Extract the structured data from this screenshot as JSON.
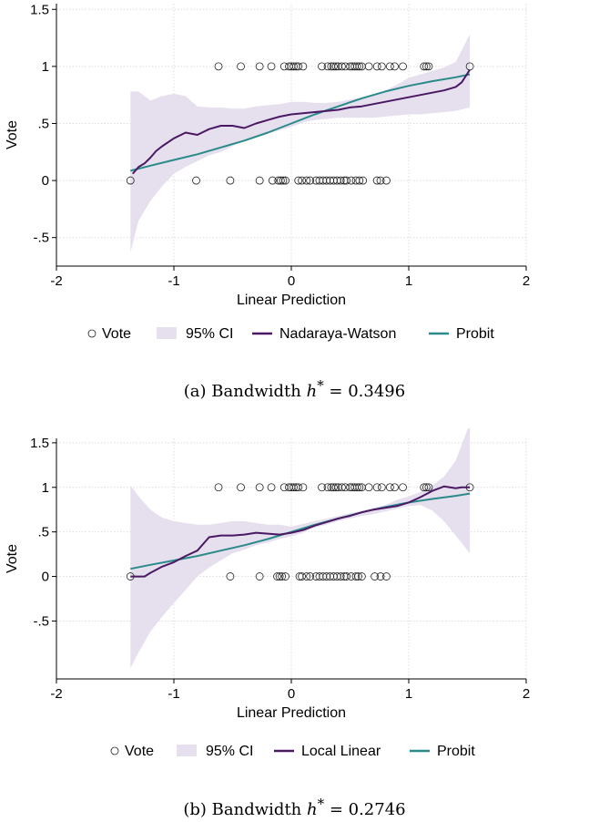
{
  "chart_data": [
    {
      "type": "scatter",
      "xlabel": "Linear Prediction",
      "ylabel": "Vote",
      "xlim": [
        -2,
        2
      ],
      "ylim": [
        -0.75,
        1.55
      ],
      "xticks": [
        -2,
        -1,
        0,
        1,
        2
      ],
      "yticks": [
        1.5,
        1,
        0.5,
        0,
        -0.5
      ],
      "x_tick_labels": [
        "-2",
        "-1",
        "0",
        "1",
        "2"
      ],
      "y_tick_labels": [
        "1.5",
        "1",
        ".5",
        "0",
        "-.5"
      ],
      "grid": true,
      "legend_position": "bottom",
      "legend": [
        {
          "label": "Vote",
          "kind": "marker"
        },
        {
          "label": "95% CI",
          "kind": "band",
          "color": "#e6e0ee"
        },
        {
          "label": "Nadaraya-Watson",
          "kind": "line",
          "color": "#4b1863"
        },
        {
          "label": "Probit",
          "kind": "line",
          "color": "#2a8a8a"
        }
      ],
      "caption": {
        "prefix": "(a) Bandwidth ",
        "var": "h",
        "sup": "*",
        "suffix": " = 0.3496"
      },
      "vote_points": {
        "x_at_1": [
          -0.62,
          -0.43,
          -0.27,
          -0.17,
          -0.06,
          -0.02,
          0.0,
          0.02,
          0.04,
          0.06,
          0.1,
          0.26,
          0.31,
          0.34,
          0.36,
          0.38,
          0.4,
          0.43,
          0.46,
          0.5,
          0.52,
          0.54,
          0.56,
          0.58,
          0.6,
          0.66,
          0.73,
          0.77,
          0.84,
          0.88,
          0.95,
          1.13,
          1.15,
          1.17,
          1.52
        ],
        "x_at_0": [
          -1.37,
          -0.81,
          -0.52,
          -0.27,
          -0.16,
          -0.11,
          -0.09,
          -0.07,
          -0.05,
          0.06,
          0.09,
          0.13,
          0.16,
          0.21,
          0.24,
          0.27,
          0.3,
          0.33,
          0.36,
          0.39,
          0.42,
          0.45,
          0.47,
          0.51,
          0.55,
          0.58,
          0.61,
          0.73,
          0.76,
          0.81
        ]
      },
      "series": [
        {
          "name": "95% CI",
          "x": [
            -1.37,
            -1.3,
            -1.2,
            -1.1,
            -1.0,
            -0.9,
            -0.8,
            -0.7,
            -0.6,
            -0.5,
            -0.4,
            -0.3,
            -0.2,
            -0.1,
            0.0,
            0.1,
            0.2,
            0.3,
            0.4,
            0.5,
            0.6,
            0.7,
            0.8,
            0.9,
            1.0,
            1.1,
            1.2,
            1.3,
            1.4,
            1.52
          ],
          "upper": [
            0.78,
            0.78,
            0.7,
            0.74,
            0.76,
            0.74,
            0.65,
            0.64,
            0.64,
            0.63,
            0.63,
            0.65,
            0.66,
            0.67,
            0.69,
            0.69,
            0.68,
            0.68,
            0.69,
            0.71,
            0.73,
            0.75,
            0.79,
            0.84,
            0.9,
            0.93,
            0.96,
            0.99,
            1.04,
            1.28
          ],
          "lower": [
            -0.63,
            -0.35,
            -0.18,
            -0.05,
            0.06,
            0.12,
            0.17,
            0.22,
            0.25,
            0.3,
            0.35,
            0.38,
            0.41,
            0.44,
            0.47,
            0.51,
            0.53,
            0.54,
            0.55,
            0.55,
            0.55,
            0.55,
            0.56,
            0.57,
            0.58,
            0.58,
            0.59,
            0.6,
            0.61,
            0.64
          ]
        },
        {
          "name": "Nadaraya-Watson",
          "x": [
            -1.35,
            -1.3,
            -1.25,
            -1.2,
            -1.15,
            -1.1,
            -1.0,
            -0.9,
            -0.8,
            -0.7,
            -0.6,
            -0.5,
            -0.4,
            -0.3,
            -0.2,
            -0.1,
            0.0,
            0.1,
            0.2,
            0.3,
            0.4,
            0.5,
            0.6,
            0.7,
            0.8,
            0.9,
            1.0,
            1.1,
            1.2,
            1.3,
            1.4,
            1.45,
            1.52
          ],
          "y": [
            0.06,
            0.12,
            0.15,
            0.2,
            0.26,
            0.3,
            0.37,
            0.42,
            0.4,
            0.45,
            0.48,
            0.48,
            0.46,
            0.5,
            0.53,
            0.56,
            0.58,
            0.59,
            0.6,
            0.61,
            0.62,
            0.64,
            0.65,
            0.67,
            0.69,
            0.71,
            0.73,
            0.75,
            0.77,
            0.79,
            0.82,
            0.86,
            0.97
          ]
        },
        {
          "name": "Probit",
          "x": [
            -1.37,
            -1.2,
            -1.0,
            -0.8,
            -0.6,
            -0.4,
            -0.2,
            0.0,
            0.2,
            0.4,
            0.6,
            0.8,
            1.0,
            1.2,
            1.4,
            1.52
          ],
          "y": [
            0.085,
            0.13,
            0.18,
            0.23,
            0.29,
            0.35,
            0.42,
            0.5,
            0.58,
            0.65,
            0.72,
            0.78,
            0.83,
            0.87,
            0.905,
            0.93
          ]
        }
      ]
    },
    {
      "type": "scatter",
      "xlabel": "Linear Prediction",
      "ylabel": "Vote",
      "xlim": [
        -2,
        2
      ],
      "ylim": [
        -1.15,
        1.55
      ],
      "xticks": [
        -2,
        -1,
        0,
        1,
        2
      ],
      "yticks": [
        1.5,
        1,
        0.5,
        0,
        -0.5
      ],
      "x_tick_labels": [
        "-2",
        "-1",
        "0",
        "1",
        "2"
      ],
      "y_tick_labels": [
        "1.5",
        "1",
        ".5",
        "0",
        "-.5"
      ],
      "grid": true,
      "legend_position": "bottom",
      "legend": [
        {
          "label": "Vote",
          "kind": "marker"
        },
        {
          "label": "95% CI",
          "kind": "band",
          "color": "#e6e0ee"
        },
        {
          "label": "Local Linear",
          "kind": "line",
          "color": "#4b1863"
        },
        {
          "label": "Probit",
          "kind": "line",
          "color": "#2a8a8a"
        }
      ],
      "caption": {
        "prefix": "(b) Bandwidth ",
        "var": "h",
        "sup": "*",
        "suffix": " = 0.2746"
      },
      "vote_points": {
        "x_at_1": [
          -0.62,
          -0.43,
          -0.27,
          -0.17,
          -0.06,
          -0.02,
          0.0,
          0.02,
          0.04,
          0.06,
          0.1,
          0.26,
          0.31,
          0.34,
          0.36,
          0.38,
          0.4,
          0.43,
          0.46,
          0.5,
          0.52,
          0.54,
          0.56,
          0.58,
          0.6,
          0.66,
          0.73,
          0.77,
          0.84,
          0.88,
          0.95,
          1.13,
          1.15,
          1.17,
          1.52
        ],
        "x_at_0": [
          -1.37,
          -0.52,
          -0.27,
          -0.12,
          -0.1,
          -0.08,
          -0.05,
          0.07,
          0.09,
          0.13,
          0.16,
          0.21,
          0.24,
          0.27,
          0.3,
          0.33,
          0.36,
          0.39,
          0.42,
          0.45,
          0.47,
          0.51,
          0.55,
          0.57,
          0.6,
          0.71,
          0.76,
          0.81
        ]
      },
      "series": [
        {
          "name": "95% CI",
          "x": [
            -1.37,
            -1.3,
            -1.2,
            -1.1,
            -1.0,
            -0.9,
            -0.8,
            -0.7,
            -0.6,
            -0.5,
            -0.4,
            -0.3,
            -0.2,
            -0.1,
            0.0,
            0.1,
            0.2,
            0.3,
            0.4,
            0.5,
            0.6,
            0.7,
            0.8,
            0.9,
            1.0,
            1.1,
            1.2,
            1.3,
            1.4,
            1.52
          ],
          "upper": [
            1.02,
            0.9,
            0.75,
            0.66,
            0.62,
            0.6,
            0.58,
            0.58,
            0.6,
            0.62,
            0.62,
            0.6,
            0.58,
            0.58,
            0.56,
            0.59,
            0.62,
            0.65,
            0.68,
            0.71,
            0.74,
            0.77,
            0.8,
            0.86,
            0.9,
            0.95,
            1.02,
            1.12,
            1.3,
            1.72
          ],
          "lower": [
            -1.03,
            -0.85,
            -0.62,
            -0.45,
            -0.3,
            -0.15,
            0.0,
            0.1,
            0.18,
            0.26,
            0.3,
            0.35,
            0.38,
            0.42,
            0.45,
            0.49,
            0.55,
            0.58,
            0.62,
            0.65,
            0.68,
            0.7,
            0.73,
            0.76,
            0.79,
            0.8,
            0.74,
            0.62,
            0.46,
            0.26
          ]
        },
        {
          "name": "Local Linear",
          "x": [
            -1.37,
            -1.3,
            -1.25,
            -1.2,
            -1.1,
            -1.0,
            -0.9,
            -0.8,
            -0.7,
            -0.6,
            -0.5,
            -0.4,
            -0.3,
            -0.2,
            -0.1,
            0.0,
            0.1,
            0.2,
            0.3,
            0.4,
            0.5,
            0.6,
            0.7,
            0.8,
            0.9,
            1.0,
            1.1,
            1.2,
            1.3,
            1.4,
            1.45,
            1.52
          ],
          "y": [
            0.0,
            0.0,
            0.0,
            0.04,
            0.11,
            0.16,
            0.23,
            0.29,
            0.44,
            0.46,
            0.46,
            0.47,
            0.49,
            0.48,
            0.47,
            0.49,
            0.52,
            0.57,
            0.61,
            0.65,
            0.68,
            0.72,
            0.75,
            0.77,
            0.79,
            0.83,
            0.89,
            0.96,
            1.01,
            0.99,
            1.0,
            1.0
          ]
        },
        {
          "name": "Probit",
          "x": [
            -1.37,
            -1.2,
            -1.0,
            -0.8,
            -0.6,
            -0.4,
            -0.2,
            0.0,
            0.2,
            0.4,
            0.6,
            0.8,
            1.0,
            1.2,
            1.4,
            1.52
          ],
          "y": [
            0.085,
            0.13,
            0.18,
            0.23,
            0.29,
            0.35,
            0.42,
            0.5,
            0.58,
            0.65,
            0.72,
            0.78,
            0.83,
            0.87,
            0.905,
            0.93
          ]
        }
      ]
    }
  ]
}
